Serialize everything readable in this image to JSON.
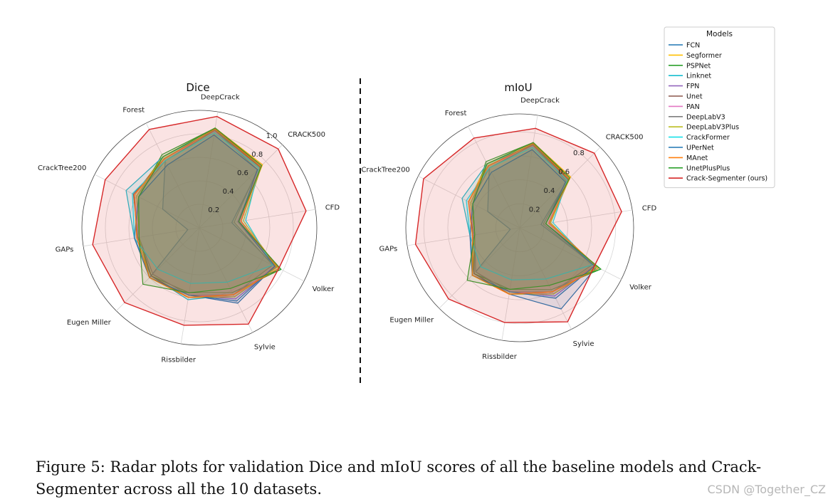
{
  "caption": "Figure 5: Radar plots for validation Dice and mIoU scores of all the baseline models and Crack-Segmenter across all the 10 datasets.",
  "watermark": "CSDN @Together_CZ",
  "legend": {
    "title": "Models",
    "placement": "top-right"
  },
  "colors": {
    "FCN": "#1f77b4",
    "Segformer": "#ffbf00",
    "PSPNet": "#2ca02c",
    "Linknet": "#17becf",
    "FPN": "#9467bd",
    "Unet": "#8c564b",
    "PAN": "#e377c2",
    "DeepLabV3": "#7f7f7f",
    "DeepLabV3Plus": "#bcbd22",
    "CrackFormer": "#17e0e8",
    "UPerNet": "#1f77b4",
    "MAnet": "#ff7f0e",
    "UnetPlusPlus": "#2ca02c",
    "Crack-Segmenter (ours)": "#d62728"
  },
  "chart_data": [
    {
      "type": "radar",
      "title": "Dice",
      "categories": [
        "DeepCrack",
        "CRACK500",
        "CFD",
        "Volker",
        "Sylvie",
        "Rissbilder",
        "Eugen Miller",
        "GAPs",
        "CrackTree200",
        "Forest"
      ],
      "rticks": [
        "0.2",
        "0.4",
        "0.6",
        "0.8",
        "1.0"
      ],
      "rlim": [
        0,
        1.0
      ],
      "grid": true,
      "series": [
        {
          "name": "FCN",
          "values": [
            0.84,
            0.72,
            0.28,
            0.72,
            0.72,
            0.58,
            0.6,
            0.1,
            0.35,
            0.64
          ]
        },
        {
          "name": "Segformer",
          "values": [
            0.86,
            0.76,
            0.35,
            0.74,
            0.64,
            0.6,
            0.6,
            0.54,
            0.62,
            0.68
          ]
        },
        {
          "name": "PSPNet",
          "values": [
            0.86,
            0.74,
            0.34,
            0.78,
            0.62,
            0.56,
            0.58,
            0.52,
            0.58,
            0.7
          ]
        },
        {
          "name": "Linknet",
          "values": [
            0.84,
            0.74,
            0.36,
            0.74,
            0.64,
            0.62,
            0.58,
            0.56,
            0.7,
            0.68
          ]
        },
        {
          "name": "FPN",
          "values": [
            0.85,
            0.74,
            0.33,
            0.73,
            0.68,
            0.58,
            0.6,
            0.52,
            0.6,
            0.66
          ]
        },
        {
          "name": "Unet",
          "values": [
            0.85,
            0.73,
            0.34,
            0.74,
            0.66,
            0.6,
            0.58,
            0.53,
            0.63,
            0.66
          ]
        },
        {
          "name": "PAN",
          "values": [
            0.83,
            0.72,
            0.35,
            0.72,
            0.66,
            0.58,
            0.56,
            0.52,
            0.62,
            0.66
          ]
        },
        {
          "name": "DeepLabV3",
          "values": [
            0.84,
            0.7,
            0.3,
            0.7,
            0.64,
            0.58,
            0.56,
            0.52,
            0.6,
            0.64
          ]
        },
        {
          "name": "DeepLabV3Plus",
          "values": [
            0.86,
            0.75,
            0.38,
            0.74,
            0.66,
            0.6,
            0.6,
            0.52,
            0.6,
            0.68
          ]
        },
        {
          "name": "CrackFormer",
          "values": [
            0.82,
            0.72,
            0.4,
            0.7,
            0.52,
            0.48,
            0.5,
            0.56,
            0.64,
            0.64
          ]
        },
        {
          "name": "UPerNet",
          "values": [
            0.8,
            0.7,
            0.34,
            0.72,
            0.7,
            0.58,
            0.6,
            0.56,
            0.58,
            0.6
          ]
        },
        {
          "name": "MAnet",
          "values": [
            0.85,
            0.74,
            0.36,
            0.76,
            0.64,
            0.6,
            0.6,
            0.54,
            0.62,
            0.66
          ]
        },
        {
          "name": "UnetPlusPlus",
          "values": [
            0.86,
            0.75,
            0.34,
            0.78,
            0.58,
            0.56,
            0.68,
            0.52,
            0.58,
            0.68
          ]
        },
        {
          "name": "Crack-Segmenter (ours)",
          "values": [
            0.96,
            0.95,
            0.92,
            0.76,
            0.92,
            0.84,
            0.9,
            0.92,
            0.9,
            0.94
          ]
        }
      ]
    },
    {
      "type": "radar",
      "title": "mIoU",
      "categories": [
        "DeepCrack",
        "CRACK500",
        "CFD",
        "Volker",
        "Sylvie",
        "Rissbilder",
        "Eugen Miller",
        "GAPs",
        "CrackTree200",
        "Forest"
      ],
      "rticks": [
        "0.2",
        "0.4",
        "0.6",
        "0.8"
      ],
      "rlim": [
        0,
        0.95
      ],
      "grid": true,
      "series": [
        {
          "name": "FCN",
          "values": [
            0.7,
            0.56,
            0.18,
            0.72,
            0.76,
            0.56,
            0.52,
            0.08,
            0.3,
            0.56
          ]
        },
        {
          "name": "Segformer",
          "values": [
            0.72,
            0.6,
            0.24,
            0.7,
            0.6,
            0.56,
            0.56,
            0.4,
            0.48,
            0.6
          ]
        },
        {
          "name": "PSPNet",
          "values": [
            0.72,
            0.58,
            0.22,
            0.76,
            0.58,
            0.52,
            0.54,
            0.38,
            0.44,
            0.62
          ]
        },
        {
          "name": "Linknet",
          "values": [
            0.7,
            0.58,
            0.25,
            0.72,
            0.6,
            0.56,
            0.54,
            0.42,
            0.54,
            0.6
          ]
        },
        {
          "name": "FPN",
          "values": [
            0.71,
            0.58,
            0.22,
            0.7,
            0.64,
            0.54,
            0.56,
            0.38,
            0.46,
            0.58
          ]
        },
        {
          "name": "Unet",
          "values": [
            0.71,
            0.57,
            0.22,
            0.72,
            0.62,
            0.56,
            0.54,
            0.39,
            0.48,
            0.58
          ]
        },
        {
          "name": "PAN",
          "values": [
            0.69,
            0.56,
            0.24,
            0.7,
            0.62,
            0.54,
            0.52,
            0.38,
            0.48,
            0.58
          ]
        },
        {
          "name": "DeepLabV3",
          "values": [
            0.7,
            0.55,
            0.2,
            0.68,
            0.6,
            0.54,
            0.52,
            0.38,
            0.46,
            0.56
          ]
        },
        {
          "name": "DeepLabV3Plus",
          "values": [
            0.72,
            0.59,
            0.26,
            0.72,
            0.62,
            0.56,
            0.56,
            0.38,
            0.46,
            0.6
          ]
        },
        {
          "name": "CrackFormer",
          "values": [
            0.68,
            0.56,
            0.28,
            0.68,
            0.48,
            0.44,
            0.46,
            0.42,
            0.5,
            0.56
          ]
        },
        {
          "name": "UPerNet",
          "values": [
            0.66,
            0.54,
            0.22,
            0.7,
            0.66,
            0.54,
            0.56,
            0.42,
            0.44,
            0.52
          ]
        },
        {
          "name": "MAnet",
          "values": [
            0.71,
            0.58,
            0.25,
            0.74,
            0.6,
            0.56,
            0.56,
            0.4,
            0.48,
            0.58
          ]
        },
        {
          "name": "UnetPlusPlus",
          "values": [
            0.72,
            0.59,
            0.22,
            0.76,
            0.54,
            0.52,
            0.62,
            0.38,
            0.44,
            0.6
          ]
        },
        {
          "name": "Crack-Segmenter (ours)",
          "values": [
            0.84,
            0.88,
            0.86,
            0.7,
            0.88,
            0.8,
            0.84,
            0.88,
            0.9,
            0.84
          ]
        }
      ]
    }
  ]
}
